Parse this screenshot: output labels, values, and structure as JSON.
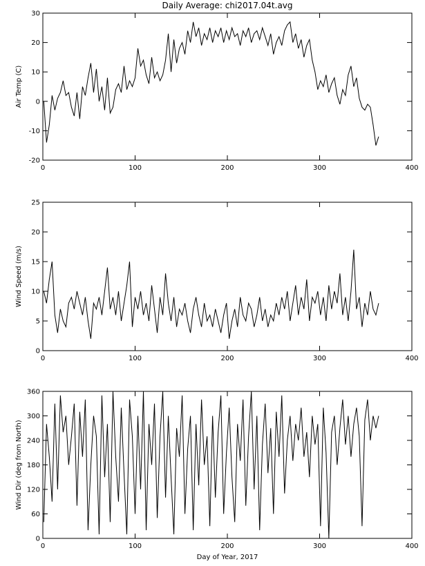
{
  "chart_data": [
    {
      "type": "line",
      "title": "Daily Average: chi2017.04t.avg",
      "ylabel": "Air Temp (C)",
      "color": "#000000",
      "x": [
        1,
        4,
        7,
        10,
        13,
        16,
        19,
        22,
        25,
        28,
        31,
        34,
        37,
        40,
        43,
        46,
        49,
        52,
        55,
        58,
        61,
        64,
        67,
        70,
        73,
        76,
        79,
        82,
        85,
        88,
        91,
        94,
        97,
        100,
        103,
        106,
        109,
        112,
        115,
        118,
        121,
        124,
        127,
        130,
        133,
        136,
        139,
        142,
        145,
        148,
        151,
        154,
        157,
        160,
        163,
        166,
        169,
        172,
        175,
        178,
        181,
        184,
        187,
        190,
        193,
        196,
        199,
        202,
        205,
        208,
        211,
        214,
        217,
        220,
        223,
        226,
        229,
        232,
        235,
        238,
        241,
        244,
        247,
        250,
        253,
        256,
        259,
        262,
        265,
        268,
        271,
        274,
        277,
        280,
        283,
        286,
        289,
        292,
        295,
        298,
        301,
        304,
        307,
        310,
        313,
        316,
        319,
        322,
        325,
        328,
        331,
        334,
        337,
        340,
        343,
        346,
        349,
        352,
        355,
        358,
        361,
        364
      ],
      "values": [
        0,
        -14,
        -8,
        2,
        -3,
        1,
        3,
        7,
        2,
        3,
        -2,
        -5,
        3,
        -6,
        5,
        2,
        8,
        13,
        3,
        11,
        0,
        5,
        -3,
        8,
        -4,
        -2,
        4,
        6,
        3,
        12,
        4,
        7,
        5,
        8,
        18,
        12,
        14,
        9,
        6,
        15,
        8,
        10,
        7,
        9,
        14,
        23,
        10,
        21,
        13,
        18,
        20,
        16,
        24,
        20,
        27,
        22,
        25,
        19,
        23,
        21,
        25,
        20,
        24,
        22,
        25,
        20,
        24,
        21,
        25,
        22,
        23,
        19,
        24,
        22,
        25,
        20,
        23,
        24,
        21,
        25,
        22,
        19,
        23,
        16,
        20,
        22,
        19,
        24,
        26,
        27,
        20,
        23,
        18,
        21,
        15,
        19,
        21,
        14,
        10,
        4,
        7,
        5,
        9,
        3,
        6,
        8,
        2,
        -1,
        4,
        2,
        9,
        12,
        5,
        8,
        1,
        -2,
        -3,
        -1,
        -2,
        -8,
        -15,
        -12
      ],
      "xlim": [
        0,
        400
      ],
      "xticks": [
        0,
        100,
        200,
        300,
        400
      ],
      "ylim": [
        -20,
        30
      ],
      "yticks": [
        -20,
        -10,
        0,
        10,
        20,
        30
      ]
    },
    {
      "type": "line",
      "ylabel": "Wind Speed (m/s)",
      "color": "#000000",
      "x": [
        1,
        4,
        7,
        10,
        13,
        16,
        19,
        22,
        25,
        28,
        31,
        34,
        37,
        40,
        43,
        46,
        49,
        52,
        55,
        58,
        61,
        64,
        67,
        70,
        73,
        76,
        79,
        82,
        85,
        88,
        91,
        94,
        97,
        100,
        103,
        106,
        109,
        112,
        115,
        118,
        121,
        124,
        127,
        130,
        133,
        136,
        139,
        142,
        145,
        148,
        151,
        154,
        157,
        160,
        163,
        166,
        169,
        172,
        175,
        178,
        181,
        184,
        187,
        190,
        193,
        196,
        199,
        202,
        205,
        208,
        211,
        214,
        217,
        220,
        223,
        226,
        229,
        232,
        235,
        238,
        241,
        244,
        247,
        250,
        253,
        256,
        259,
        262,
        265,
        268,
        271,
        274,
        277,
        280,
        283,
        286,
        289,
        292,
        295,
        298,
        301,
        304,
        307,
        310,
        313,
        316,
        319,
        322,
        325,
        328,
        331,
        334,
        337,
        340,
        343,
        346,
        349,
        352,
        355,
        358,
        361,
        364
      ],
      "values": [
        10,
        8,
        12,
        15,
        6,
        3,
        7,
        5,
        4,
        8,
        9,
        7,
        10,
        8,
        6,
        9,
        5,
        2,
        8,
        7,
        9,
        6,
        10,
        14,
        7,
        9,
        6,
        10,
        5,
        8,
        11,
        15,
        4,
        9,
        7,
        10,
        6,
        8,
        5,
        11,
        7,
        3,
        9,
        6,
        13,
        8,
        5,
        9,
        4,
        7,
        6,
        8,
        5,
        3,
        7,
        9,
        6,
        4,
        8,
        5,
        6,
        4,
        7,
        5,
        3,
        6,
        8,
        2,
        5,
        7,
        4,
        9,
        6,
        5,
        8,
        7,
        4,
        6,
        9,
        5,
        7,
        4,
        6,
        5,
        8,
        6,
        9,
        7,
        10,
        5,
        8,
        11,
        6,
        9,
        7,
        12,
        5,
        9,
        8,
        10,
        6,
        9,
        5,
        11,
        7,
        10,
        8,
        13,
        6,
        9,
        5,
        10,
        17,
        7,
        9,
        4,
        8,
        6,
        10,
        7,
        6,
        8
      ],
      "xlim": [
        0,
        400
      ],
      "xticks": [
        0,
        100,
        200,
        300,
        400
      ],
      "ylim": [
        0,
        25
      ],
      "yticks": [
        0,
        5,
        10,
        15,
        20,
        25
      ]
    },
    {
      "type": "line",
      "ylabel": "Wind Dir (deg from North)",
      "xlabel": "Day of Year, 2017",
      "color": "#000000",
      "x": [
        1,
        4,
        7,
        10,
        13,
        16,
        19,
        22,
        25,
        28,
        31,
        34,
        37,
        40,
        43,
        46,
        49,
        52,
        55,
        58,
        61,
        64,
        67,
        70,
        73,
        76,
        79,
        82,
        85,
        88,
        91,
        94,
        97,
        100,
        103,
        106,
        109,
        112,
        115,
        118,
        121,
        124,
        127,
        130,
        133,
        136,
        139,
        142,
        145,
        148,
        151,
        154,
        157,
        160,
        163,
        166,
        169,
        172,
        175,
        178,
        181,
        184,
        187,
        190,
        193,
        196,
        199,
        202,
        205,
        208,
        211,
        214,
        217,
        220,
        223,
        226,
        229,
        232,
        235,
        238,
        241,
        244,
        247,
        250,
        253,
        256,
        259,
        262,
        265,
        268,
        271,
        274,
        277,
        280,
        283,
        286,
        289,
        292,
        295,
        298,
        301,
        304,
        307,
        310,
        313,
        316,
        319,
        322,
        325,
        328,
        331,
        334,
        337,
        340,
        343,
        346,
        349,
        352,
        355,
        358,
        361,
        364
      ],
      "values": [
        40,
        280,
        200,
        90,
        330,
        120,
        350,
        260,
        300,
        180,
        250,
        330,
        80,
        310,
        200,
        340,
        20,
        180,
        300,
        250,
        10,
        350,
        150,
        280,
        40,
        360,
        200,
        90,
        320,
        160,
        10,
        340,
        250,
        60,
        300,
        120,
        360,
        20,
        280,
        180,
        330,
        50,
        250,
        360,
        100,
        300,
        150,
        10,
        270,
        200,
        350,
        60,
        220,
        300,
        20,
        280,
        130,
        340,
        180,
        250,
        30,
        300,
        100,
        260,
        350,
        60,
        210,
        320,
        150,
        40,
        280,
        190,
        340,
        80,
        250,
        360,
        120,
        300,
        20,
        230,
        330,
        160,
        270,
        60,
        310,
        200,
        350,
        110,
        240,
        300,
        190,
        280,
        240,
        320,
        200,
        260,
        150,
        300,
        230,
        280,
        30,
        320,
        210,
        0,
        260,
        300,
        180,
        270,
        340,
        230,
        300,
        200,
        280,
        320,
        250,
        30,
        290,
        340,
        240,
        300,
        270,
        300
      ],
      "xlim": [
        0,
        400
      ],
      "xticks": [
        0,
        100,
        200,
        300,
        400
      ],
      "ylim": [
        0,
        360
      ],
      "yticks": [
        0,
        60,
        120,
        180,
        240,
        300,
        360
      ]
    }
  ]
}
